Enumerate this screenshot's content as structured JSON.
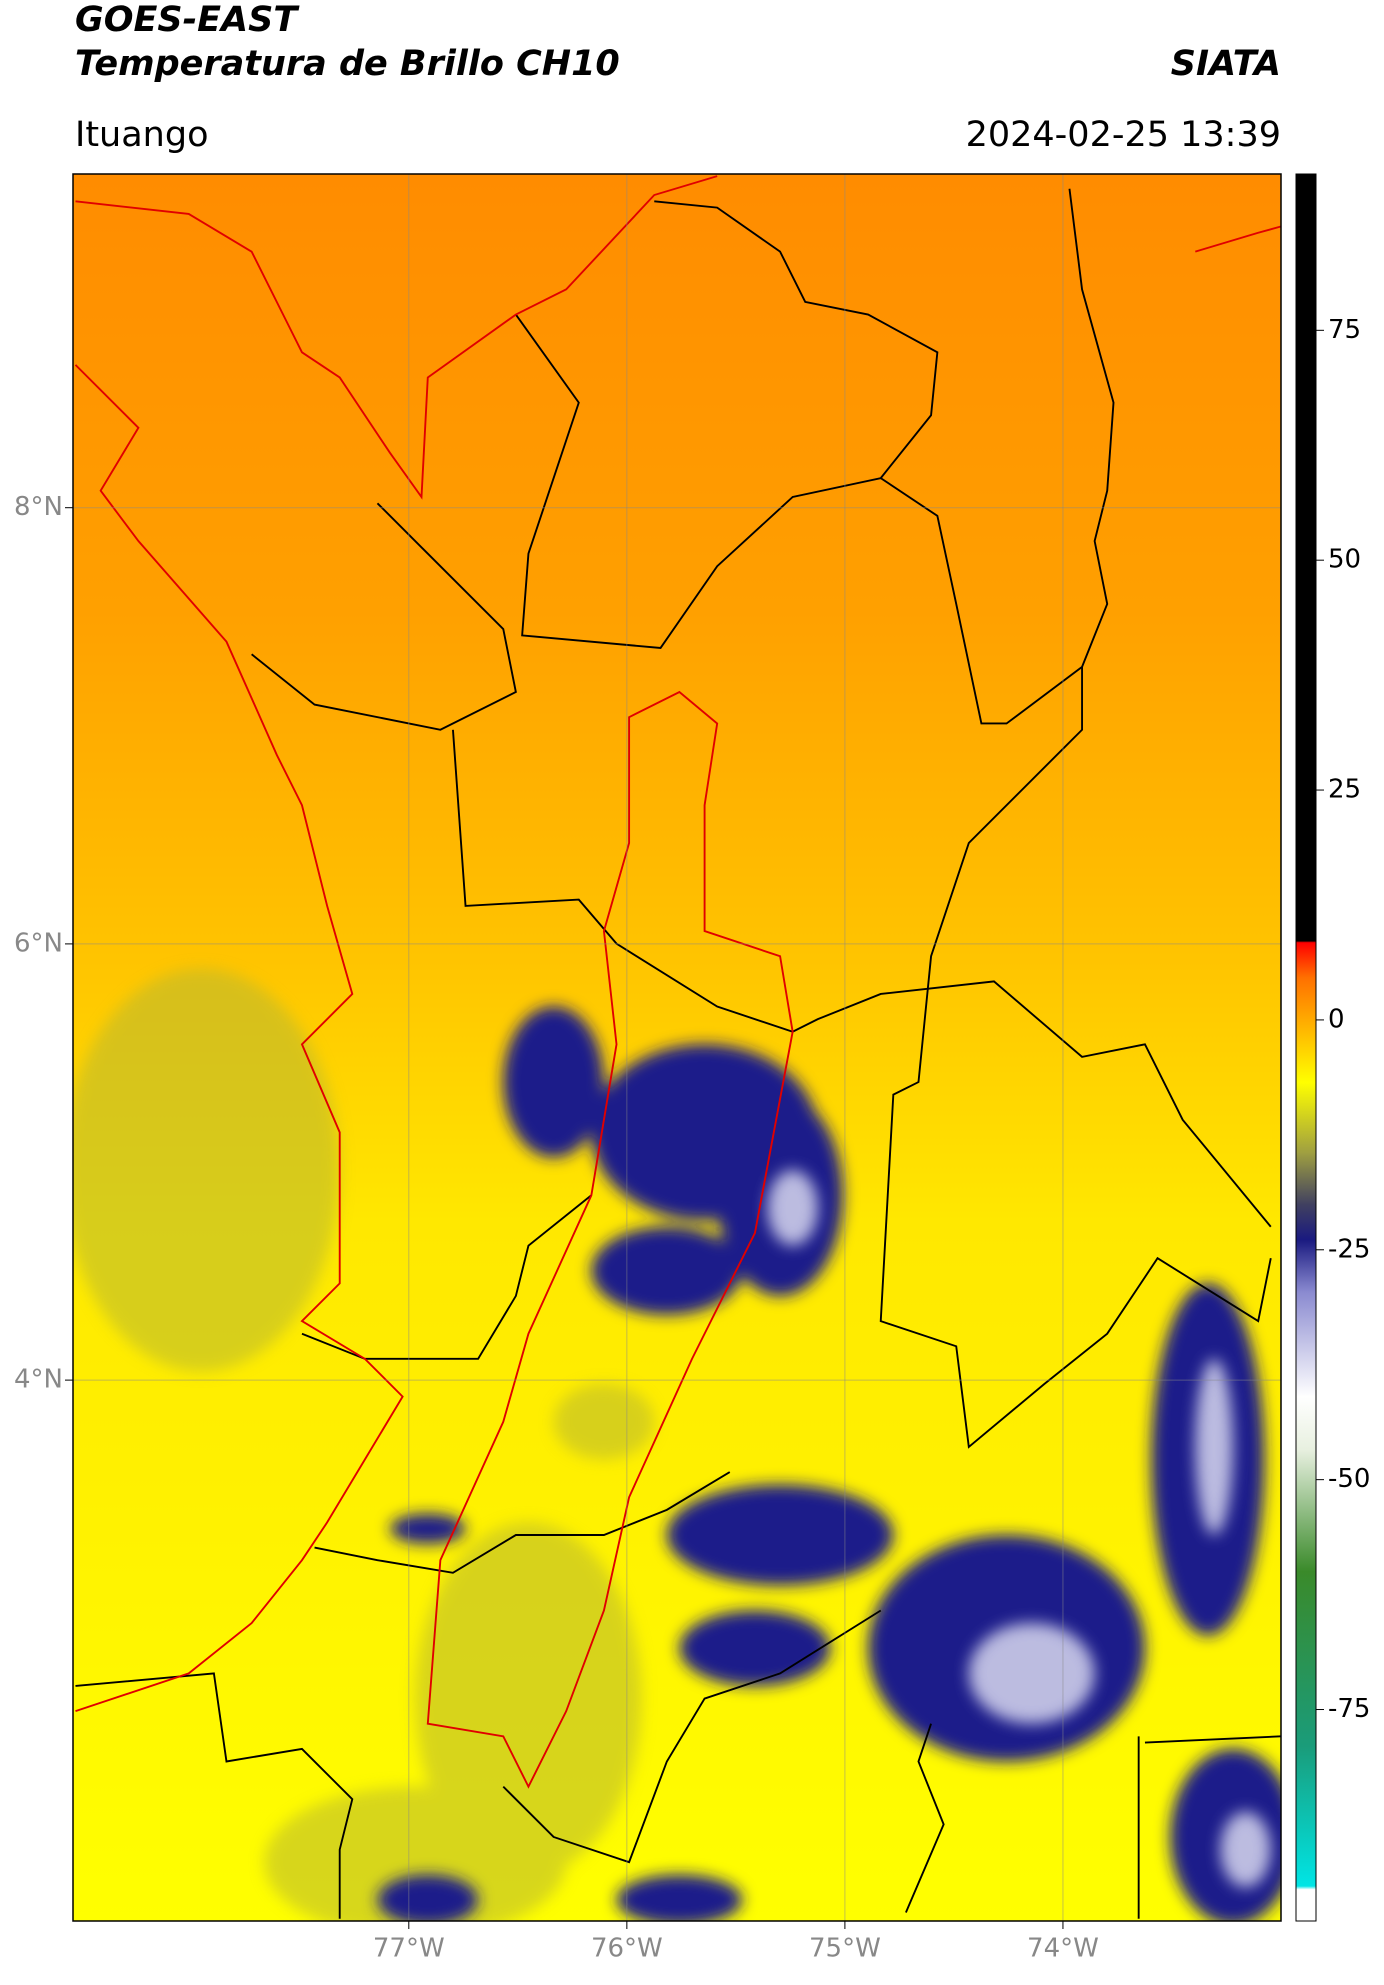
{
  "header": {
    "title": "GOES-EAST",
    "subtitle": "Temperatura de Brillo CH10",
    "brand": "SIATA",
    "place": "Ituango",
    "datetime": "2024-02-25 13:39"
  },
  "map": {
    "lat_range": [
      1.52,
      9.53
    ],
    "lon_range": [
      -78.54,
      -73.0
    ],
    "lat_ticks": [
      {
        "value": 8,
        "label": "8°N"
      },
      {
        "value": 6,
        "label": "6°N"
      },
      {
        "value": 4,
        "label": "4°N"
      }
    ],
    "lon_ticks": [
      {
        "value": -77,
        "label": "77°W"
      },
      {
        "value": -76,
        "label": "76°W"
      },
      {
        "value": -75,
        "label": "75°W"
      },
      {
        "value": -74,
        "label": "74°W"
      }
    ],
    "grid": true
  },
  "colorbar": {
    "range": [
      -98,
      92
    ],
    "ticks": [
      75,
      50,
      25,
      0,
      -25,
      -50,
      -75
    ]
  }
}
